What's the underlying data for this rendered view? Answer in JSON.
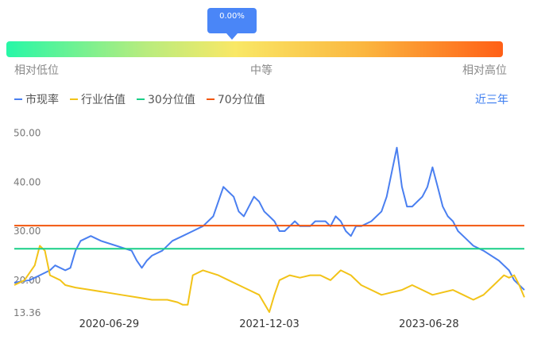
{
  "tooltip": {
    "text": "0.00%"
  },
  "gauge": {
    "low_label": "相对低位",
    "mid_label": "中等",
    "high_label": "相对高位",
    "colors": [
      "#27f7a7",
      "#f9e866",
      "#ff5f16"
    ]
  },
  "legend": {
    "items": [
      {
        "label": "市现率",
        "color": "#4a7ff0"
      },
      {
        "label": "行业估值",
        "color": "#f2c318"
      },
      {
        "label": "30分位值",
        "color": "#18cf87"
      },
      {
        "label": "70分位值",
        "color": "#f2560e"
      }
    ]
  },
  "period": {
    "label": "近三年"
  },
  "chart_data": {
    "type": "line",
    "title": "",
    "xlabel": "",
    "ylabel": "",
    "ylim": [
      13.36,
      53
    ],
    "y_ticks": [
      {
        "value": 50,
        "label": "50.00"
      },
      {
        "value": 40,
        "label": "40.00"
      },
      {
        "value": 30,
        "label": "30.00"
      },
      {
        "value": 20,
        "label": "20.00"
      },
      {
        "value": 13.36,
        "label": "13.36"
      }
    ],
    "x_ticks": [
      "2020-06-29",
      "2021-12-03",
      "2023-06-28"
    ],
    "x_tick_pos": [
      0.186,
      0.5,
      0.813
    ],
    "series": [
      {
        "name": "市现率",
        "color": "#4a7ff0",
        "points": [
          [
            0,
            20.5
          ],
          [
            0.03,
            21
          ],
          [
            0.05,
            22
          ],
          [
            0.07,
            23
          ],
          [
            0.08,
            24
          ],
          [
            0.1,
            23
          ],
          [
            0.11,
            23.5
          ],
          [
            0.12,
            27
          ],
          [
            0.13,
            29
          ],
          [
            0.15,
            30
          ],
          [
            0.17,
            29
          ],
          [
            0.2,
            28
          ],
          [
            0.23,
            27
          ],
          [
            0.24,
            25
          ],
          [
            0.25,
            23.5
          ],
          [
            0.26,
            25
          ],
          [
            0.27,
            26
          ],
          [
            0.29,
            27
          ],
          [
            0.31,
            29
          ],
          [
            0.33,
            30
          ],
          [
            0.35,
            31
          ],
          [
            0.37,
            32
          ],
          [
            0.39,
            34
          ],
          [
            0.4,
            37
          ],
          [
            0.41,
            40
          ],
          [
            0.42,
            39
          ],
          [
            0.43,
            38
          ],
          [
            0.44,
            35
          ],
          [
            0.45,
            34
          ],
          [
            0.46,
            36
          ],
          [
            0.47,
            38
          ],
          [
            0.48,
            37
          ],
          [
            0.49,
            35
          ],
          [
            0.5,
            34
          ],
          [
            0.51,
            33
          ],
          [
            0.52,
            31
          ],
          [
            0.53,
            31
          ],
          [
            0.54,
            32
          ],
          [
            0.55,
            33
          ],
          [
            0.56,
            32
          ],
          [
            0.58,
            32
          ],
          [
            0.59,
            33
          ],
          [
            0.6,
            33
          ],
          [
            0.61,
            33
          ],
          [
            0.62,
            32
          ],
          [
            0.63,
            34
          ],
          [
            0.64,
            33
          ],
          [
            0.65,
            31
          ],
          [
            0.66,
            30
          ],
          [
            0.67,
            32
          ],
          [
            0.68,
            32
          ],
          [
            0.7,
            33
          ],
          [
            0.72,
            35
          ],
          [
            0.73,
            38
          ],
          [
            0.74,
            43
          ],
          [
            0.75,
            48
          ],
          [
            0.76,
            40
          ],
          [
            0.77,
            36
          ],
          [
            0.78,
            36
          ],
          [
            0.79,
            37
          ],
          [
            0.8,
            38
          ],
          [
            0.81,
            40
          ],
          [
            0.82,
            44
          ],
          [
            0.83,
            40
          ],
          [
            0.84,
            36
          ],
          [
            0.85,
            34
          ],
          [
            0.86,
            33
          ],
          [
            0.87,
            31
          ],
          [
            0.88,
            30
          ],
          [
            0.89,
            29
          ],
          [
            0.9,
            28
          ],
          [
            0.92,
            27
          ],
          [
            0.95,
            25
          ],
          [
            0.97,
            23
          ],
          [
            0.98,
            21
          ],
          [
            1.0,
            19
          ]
        ]
      },
      {
        "name": "行业估值",
        "color": "#f2c318",
        "points": [
          [
            0,
            20
          ],
          [
            0.02,
            21
          ],
          [
            0.04,
            24
          ],
          [
            0.05,
            28
          ],
          [
            0.06,
            27
          ],
          [
            0.07,
            22
          ],
          [
            0.09,
            21
          ],
          [
            0.1,
            20
          ],
          [
            0.12,
            19.5
          ],
          [
            0.15,
            19
          ],
          [
            0.18,
            18.5
          ],
          [
            0.21,
            18
          ],
          [
            0.24,
            17.5
          ],
          [
            0.27,
            17
          ],
          [
            0.3,
            17
          ],
          [
            0.32,
            16.5
          ],
          [
            0.33,
            16
          ],
          [
            0.34,
            16
          ],
          [
            0.35,
            22
          ],
          [
            0.37,
            23
          ],
          [
            0.4,
            22
          ],
          [
            0.42,
            21
          ],
          [
            0.44,
            20
          ],
          [
            0.46,
            19
          ],
          [
            0.48,
            18
          ],
          [
            0.5,
            14.5
          ],
          [
            0.51,
            18
          ],
          [
            0.52,
            21
          ],
          [
            0.54,
            22
          ],
          [
            0.56,
            21.5
          ],
          [
            0.58,
            22
          ],
          [
            0.6,
            22
          ],
          [
            0.62,
            21
          ],
          [
            0.64,
            23
          ],
          [
            0.66,
            22
          ],
          [
            0.68,
            20
          ],
          [
            0.7,
            19
          ],
          [
            0.72,
            18
          ],
          [
            0.74,
            18.5
          ],
          [
            0.76,
            19
          ],
          [
            0.78,
            20
          ],
          [
            0.8,
            19
          ],
          [
            0.82,
            18
          ],
          [
            0.84,
            18.5
          ],
          [
            0.86,
            19
          ],
          [
            0.88,
            18
          ],
          [
            0.9,
            17
          ],
          [
            0.92,
            18
          ],
          [
            0.94,
            20
          ],
          [
            0.95,
            21
          ],
          [
            0.96,
            22
          ],
          [
            0.97,
            21.5
          ],
          [
            0.98,
            22
          ],
          [
            0.99,
            20
          ],
          [
            1.0,
            17.5
          ]
        ]
      },
      {
        "name": "30分位值",
        "color": "#18cf87",
        "constant": 27.4
      },
      {
        "name": "70分位值",
        "color": "#f2560e",
        "constant": 32.1
      }
    ]
  }
}
